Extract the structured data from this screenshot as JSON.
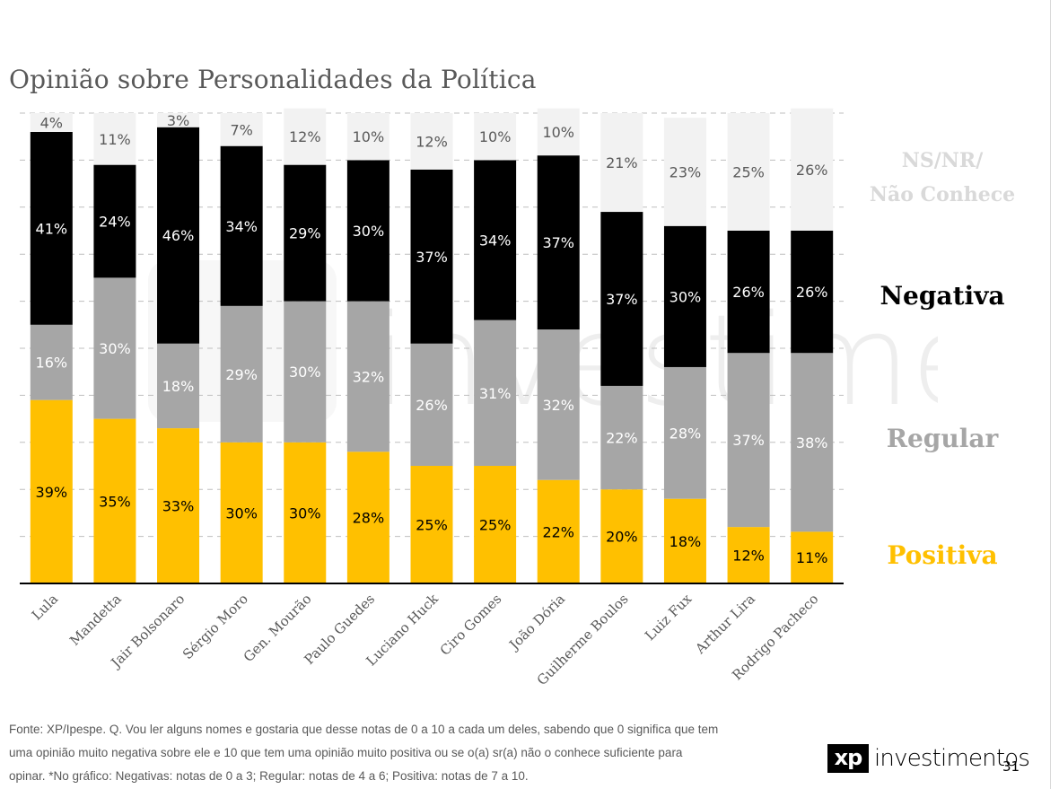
{
  "title": "Opinião sobre Personalidades da Política",
  "legend": {
    "nsnr_line1": "NS/NR/",
    "nsnr_line2": "Não Conhece",
    "negativa": "Negativa",
    "regular": "Regular",
    "positiva": "Positiva"
  },
  "footnote": {
    "line1": "Fonte: XP/Ipespe. Q. Vou ler alguns nomes e gostaria que desse notas de 0 a 10 a cada um deles, sabendo que 0 significa que tem",
    "line2": "uma opinião muito negativa sobre ele e 10 que tem uma opinião muito positiva ou se o(a) sr(a) não o conhece suficiente para",
    "line3": "opinar. *No gráfico: Negativas: notas de 0 a 3; Regular: notas de 4 a 6; Positiva: notas de 7 a 10."
  },
  "brand": {
    "logo_mark": "xp",
    "name": "investimentos",
    "watermark_text": "investimentos"
  },
  "page_number": "31",
  "colors": {
    "positiva": "#ffc000",
    "regular": "#a6a6a6",
    "negativa": "#000000",
    "nsnr": "#f2f2f2"
  },
  "chart_data": {
    "type": "bar",
    "stacked": true,
    "categories": [
      "Lula",
      "Mandetta",
      "Jair Bolsonaro",
      "Sérgio Moro",
      "Gen. Mourão",
      "Paulo Guedes",
      "Luciano Huck",
      "Ciro Gomes",
      "João Dória",
      "Guilherme Boulos",
      "Luiz Fux",
      "Arthur Lira",
      "Rodrigo Pacheco"
    ],
    "series": [
      {
        "name": "Positiva",
        "color": "#ffc000",
        "values": [
          39,
          35,
          33,
          30,
          30,
          28,
          25,
          25,
          22,
          20,
          18,
          12,
          11
        ]
      },
      {
        "name": "Regular",
        "color": "#a6a6a6",
        "values": [
          16,
          30,
          18,
          29,
          30,
          32,
          26,
          31,
          32,
          22,
          28,
          37,
          38
        ]
      },
      {
        "name": "Negativa",
        "color": "#000000",
        "values": [
          41,
          24,
          46,
          34,
          29,
          30,
          37,
          34,
          37,
          37,
          30,
          26,
          26
        ]
      },
      {
        "name": "NS/NR/ Não Conhece",
        "color": "#f2f2f2",
        "values": [
          4,
          11,
          3,
          7,
          12,
          10,
          12,
          10,
          10,
          21,
          23,
          25,
          26
        ]
      }
    ],
    "ylim": [
      0,
      100
    ],
    "grid": true,
    "value_suffix": "%",
    "legend_position": "right"
  }
}
